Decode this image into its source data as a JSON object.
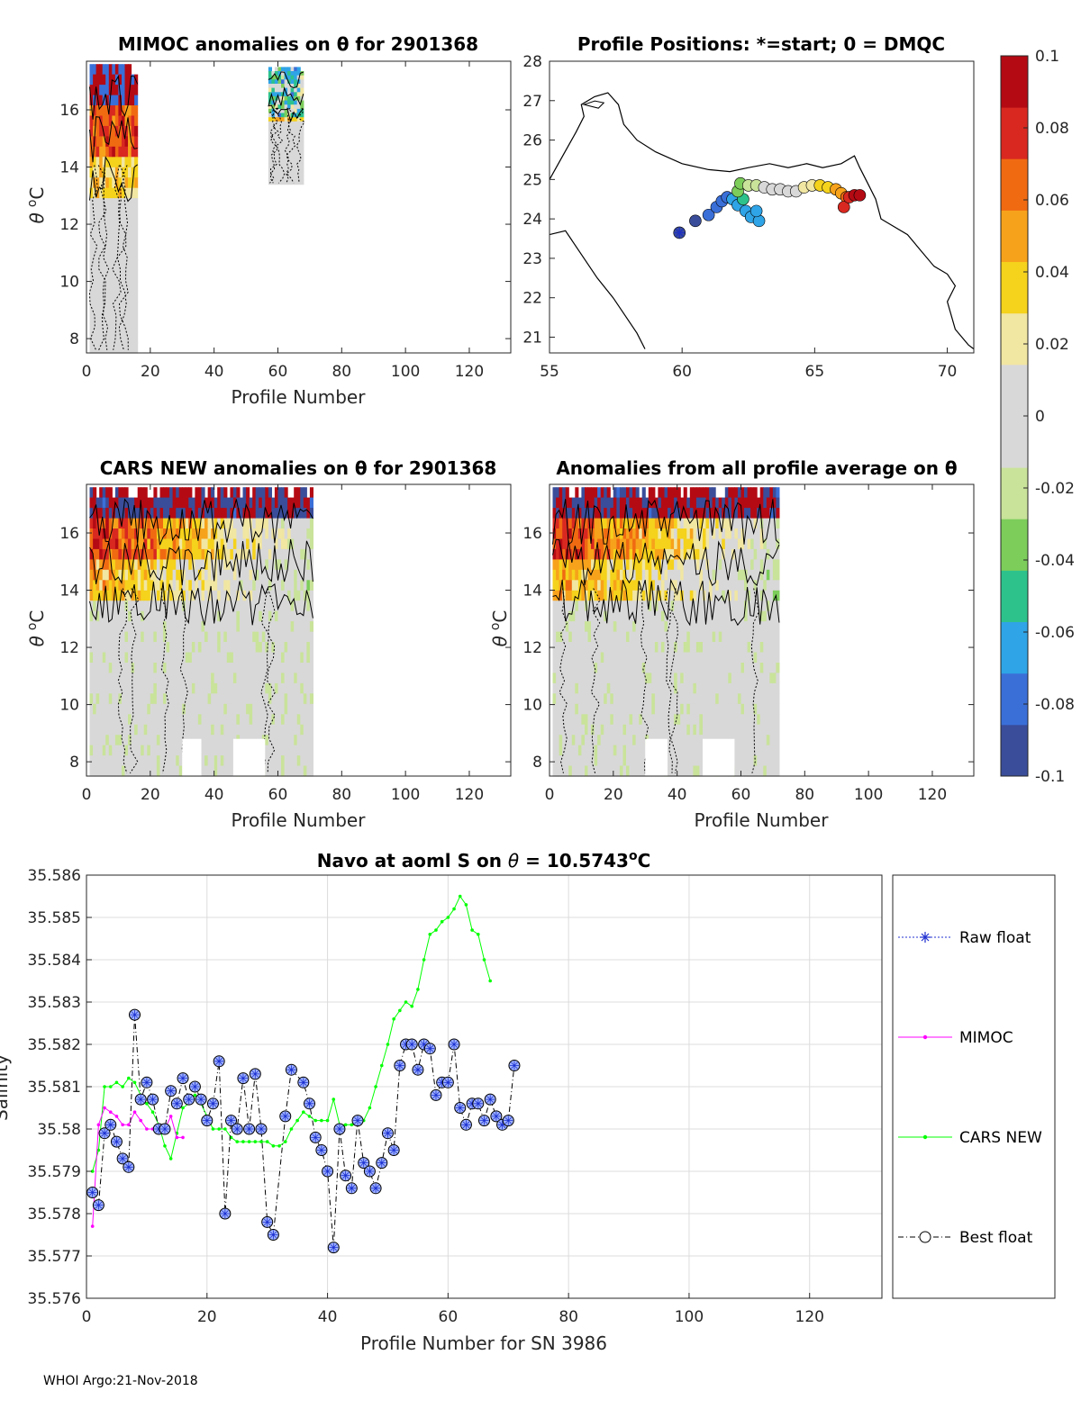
{
  "footer": "WHOI Argo:21-Nov-2018",
  "colorbar": {
    "ticks": [
      "0.1",
      "0.08",
      "0.06",
      "0.04",
      "0.02",
      "0",
      "-0.02",
      "-0.04",
      "-0.06",
      "-0.08",
      "-0.1"
    ],
    "colors": [
      "#3a4d9a",
      "#3a6fd8",
      "#2fa4e6",
      "#2dc28c",
      "#7ccd5a",
      "#c9e39a",
      "#d8d8d8",
      "#d8d8d8",
      "#f1e6a2",
      "#f5d21c",
      "#f7a21b",
      "#f06a12",
      "#d82820",
      "#b40a14"
    ]
  },
  "chart_data": [
    {
      "id": "mimoc",
      "type": "heatmap",
      "title": "MIMOC anomalies on θ  for 2901368",
      "xlabel": "Profile Number",
      "ylabel": "θ °C",
      "ylabel_text": "θ",
      "ylabel_unit": "oC",
      "xlim": [
        0,
        133
      ],
      "ylim": [
        7.5,
        17.7
      ],
      "xticks": [
        0,
        20,
        40,
        60,
        80,
        100,
        120
      ],
      "yticks": [
        8,
        10,
        12,
        14,
        16
      ],
      "blocks": [
        {
          "x": [
            1,
            16
          ],
          "ytop": 17.6,
          "ybot": 7.5
        },
        {
          "x": [
            57,
            68
          ],
          "ytop": 17.5,
          "ybot": 13.4
        }
      ]
    },
    {
      "id": "positions",
      "type": "scatter",
      "title": "Profile Positions: *=start; 0 = DMQC",
      "xlim": [
        55,
        71
      ],
      "ylim": [
        20.6,
        28
      ],
      "xticks": [
        55,
        60,
        65,
        70
      ],
      "yticks": [
        21,
        22,
        23,
        24,
        25,
        26,
        27,
        28
      ],
      "start": [
        59.9,
        23.65
      ],
      "points": [
        [
          59.9,
          23.65,
          0.0
        ],
        [
          60.5,
          23.95,
          0.05
        ],
        [
          61.0,
          24.1,
          0.08
        ],
        [
          61.3,
          24.3,
          0.1
        ],
        [
          61.5,
          24.45,
          0.12
        ],
        [
          61.7,
          24.55,
          0.14
        ],
        [
          61.9,
          24.5,
          0.16
        ],
        [
          62.1,
          24.35,
          0.17
        ],
        [
          62.4,
          24.2,
          0.18
        ],
        [
          62.6,
          24.05,
          0.19
        ],
        [
          62.9,
          23.95,
          0.2
        ],
        [
          62.8,
          24.2,
          0.21
        ],
        [
          62.3,
          24.5,
          0.25
        ],
        [
          62.1,
          24.7,
          0.3
        ],
        [
          62.2,
          24.9,
          0.33
        ],
        [
          62.5,
          24.85,
          0.36
        ],
        [
          62.8,
          24.85,
          0.4
        ],
        [
          63.1,
          24.8,
          0.43
        ],
        [
          63.4,
          24.75,
          0.46
        ],
        [
          63.7,
          24.75,
          0.5
        ],
        [
          64.0,
          24.7,
          0.53
        ],
        [
          64.3,
          24.7,
          0.56
        ],
        [
          64.6,
          24.8,
          0.6
        ],
        [
          64.9,
          24.85,
          0.63
        ],
        [
          65.2,
          24.85,
          0.67
        ],
        [
          65.5,
          24.8,
          0.7
        ],
        [
          65.8,
          24.75,
          0.74
        ],
        [
          66.0,
          24.65,
          0.78
        ],
        [
          66.2,
          24.55,
          0.82
        ],
        [
          66.1,
          24.3,
          0.86
        ],
        [
          66.3,
          24.55,
          0.9
        ],
        [
          66.5,
          24.6,
          0.95
        ],
        [
          66.7,
          24.6,
          1.0
        ]
      ],
      "coast": [
        [
          55,
          25.0
        ],
        [
          55.5,
          25.6
        ],
        [
          56.0,
          26.2
        ],
        [
          56.3,
          26.6
        ],
        [
          56.2,
          26.9
        ],
        [
          56.7,
          27.1
        ],
        [
          57.2,
          27.2
        ],
        [
          57.6,
          26.9
        ],
        [
          57.8,
          26.4
        ],
        [
          58.3,
          26.0
        ],
        [
          59.0,
          25.7
        ],
        [
          60.0,
          25.4
        ],
        [
          61.0,
          25.25
        ],
        [
          61.8,
          25.2
        ],
        [
          62.5,
          25.3
        ],
        [
          63.3,
          25.4
        ],
        [
          64.0,
          25.3
        ],
        [
          64.7,
          25.4
        ],
        [
          65.3,
          25.3
        ],
        [
          66.0,
          25.4
        ],
        [
          66.5,
          25.6
        ],
        [
          66.7,
          25.3
        ],
        [
          67.0,
          24.9
        ],
        [
          67.3,
          24.5
        ],
        [
          67.5,
          24.0
        ],
        [
          68.0,
          23.8
        ],
        [
          68.5,
          23.6
        ],
        [
          69.0,
          23.2
        ],
        [
          69.5,
          22.8
        ],
        [
          70.0,
          22.6
        ],
        [
          70.3,
          22.3
        ],
        [
          70.0,
          21.9
        ],
        [
          70.3,
          21.2
        ],
        [
          70.8,
          20.8
        ],
        [
          71.0,
          20.7
        ]
      ],
      "coast2": [
        [
          55.0,
          23.6
        ],
        [
          55.6,
          23.7
        ],
        [
          56.3,
          23.0
        ],
        [
          56.8,
          22.5
        ],
        [
          57.4,
          22.0
        ],
        [
          57.8,
          21.6
        ],
        [
          58.3,
          21.1
        ],
        [
          58.6,
          20.7
        ]
      ]
    },
    {
      "id": "cars",
      "type": "heatmap",
      "title": "CARS NEW anomalies on θ for 2901368",
      "xlabel": "Profile Number",
      "ylabel": "θ °C",
      "ylabel_text": "θ",
      "ylabel_unit": "oC",
      "xlim": [
        0,
        133
      ],
      "ylim": [
        7.5,
        17.7
      ],
      "xticks": [
        0,
        20,
        40,
        60,
        80,
        100,
        120
      ],
      "yticks": [
        8,
        10,
        12,
        14,
        16
      ],
      "blocks": [
        {
          "x": [
            1,
            71
          ],
          "ytop": 17.6,
          "ybot": 7.5
        }
      ]
    },
    {
      "id": "allavg",
      "type": "heatmap",
      "title": "Anomalies from all profile average on θ",
      "xlabel": "Profile Number",
      "ylabel": "θ °C",
      "ylabel_text": "θ",
      "ylabel_unit": "oC",
      "xlim": [
        0,
        133
      ],
      "ylim": [
        7.5,
        17.7
      ],
      "xticks": [
        0,
        20,
        40,
        60,
        80,
        100,
        120
      ],
      "yticks": [
        8,
        10,
        12,
        14,
        16
      ],
      "blocks": [
        {
          "x": [
            1,
            72
          ],
          "ytop": 17.6,
          "ybot": 7.5
        }
      ]
    },
    {
      "id": "salinity",
      "type": "line",
      "title": "Navo at aoml S on θ = 10.5743°C",
      "title_parts": [
        "Navo at aoml S on ",
        "θ",
        " = 10.5743",
        "o",
        "C"
      ],
      "xlabel": "Profile Number for SN 3986",
      "ylabel": "Salinity",
      "xlim": [
        0,
        132
      ],
      "ylim": [
        35.576,
        35.586
      ],
      "xticks": [
        0,
        20,
        40,
        60,
        80,
        100,
        120
      ],
      "yticks": [
        "35.576",
        "35.577",
        "35.578",
        "35.579",
        "35.58",
        "35.581",
        "35.582",
        "35.583",
        "35.584",
        "35.585",
        "35.586"
      ],
      "grid": true,
      "legend": [
        "Raw float",
        "MIMOC",
        "CARS NEW",
        "Best float"
      ],
      "series": [
        {
          "name": "Best float",
          "color": "#000000",
          "x": [
            1,
            2,
            3,
            4,
            5,
            6,
            7,
            8,
            9,
            10,
            11,
            12,
            13,
            14,
            15,
            16,
            17,
            18,
            19,
            20,
            21,
            22,
            23,
            24,
            25,
            26,
            27,
            28,
            29,
            30,
            31,
            33,
            34,
            36,
            37,
            38,
            39,
            40,
            41,
            42,
            43,
            44,
            45,
            46,
            47,
            48,
            49,
            50,
            51,
            52,
            53,
            54,
            55,
            56,
            57,
            58,
            59,
            60,
            61,
            62,
            63,
            64,
            65,
            66,
            67,
            68,
            69,
            70,
            71
          ],
          "y": [
            35.5785,
            35.5782,
            35.5799,
            35.5801,
            35.5797,
            35.5793,
            35.5791,
            35.5827,
            35.5807,
            35.5811,
            35.5807,
            35.58,
            35.58,
            35.5809,
            35.5806,
            35.5812,
            35.5807,
            35.581,
            35.5807,
            35.5802,
            35.5806,
            35.5816,
            35.578,
            35.5802,
            35.58,
            35.5812,
            35.58,
            35.5813,
            35.58,
            35.5778,
            35.5775,
            35.5803,
            35.5814,
            35.5811,
            35.5806,
            35.5798,
            35.5795,
            35.579,
            35.5772,
            35.58,
            35.5789,
            35.5786,
            35.5802,
            35.5792,
            35.579,
            35.5786,
            35.5792,
            35.5799,
            35.5795,
            35.5815,
            35.582,
            35.582,
            35.5814,
            35.582,
            35.5819,
            35.5808,
            35.5811,
            35.5811,
            35.582,
            35.5805,
            35.5801,
            35.5806,
            35.5806,
            35.5802,
            35.5807,
            35.5803,
            35.5801,
            35.5802,
            35.5815
          ]
        },
        {
          "name": "MIMOC",
          "color": "#ff00ff",
          "x": [
            1,
            2,
            3,
            4,
            5,
            6,
            7,
            8,
            9,
            10,
            11,
            12,
            13,
            14,
            15,
            16
          ],
          "y": [
            35.5777,
            35.5801,
            35.5805,
            35.5804,
            35.5803,
            35.5801,
            35.5801,
            35.5804,
            35.5802,
            35.58,
            35.58,
            35.5801,
            35.58,
            35.5803,
            35.5798,
            35.5798
          ]
        },
        {
          "name": "CARS NEW",
          "color": "#00ff00",
          "x": [
            1,
            2,
            3,
            4,
            5,
            6,
            7,
            8,
            9,
            10,
            11,
            12,
            13,
            14,
            15,
            16,
            17,
            18,
            19,
            20,
            21,
            22,
            23,
            24,
            25,
            26,
            27,
            28,
            29,
            30,
            31,
            32,
            33,
            34,
            35,
            36,
            37,
            38,
            39,
            40,
            41,
            42,
            43,
            44,
            45,
            46,
            47,
            48,
            49,
            50,
            51,
            52,
            53,
            54,
            55,
            56,
            57,
            58,
            59,
            60,
            61,
            62,
            63,
            64,
            65,
            66,
            67
          ],
          "y": [
            35.579,
            35.5795,
            35.581,
            35.581,
            35.5811,
            35.581,
            35.5812,
            35.5811,
            35.5808,
            35.5806,
            35.5804,
            35.5801,
            35.5796,
            35.5793,
            35.5799,
            35.5805,
            35.5806,
            35.5808,
            35.5806,
            35.5803,
            35.58,
            35.58,
            35.58,
            35.5798,
            35.5797,
            35.5797,
            35.5797,
            35.5797,
            35.5797,
            35.5797,
            35.5796,
            35.5796,
            35.5797,
            35.58,
            35.5802,
            35.5804,
            35.5803,
            35.5802,
            35.5802,
            35.5802,
            35.5807,
            35.5801,
            35.5801,
            35.5801,
            35.5801,
            35.5802,
            35.5805,
            35.581,
            35.5815,
            35.582,
            35.5826,
            35.5828,
            35.583,
            35.5829,
            35.5833,
            35.584,
            35.5846,
            35.5847,
            35.5849,
            35.585,
            35.5852,
            35.5855,
            35.5853,
            35.5847,
            35.5846,
            35.584,
            35.5835
          ]
        }
      ]
    }
  ]
}
